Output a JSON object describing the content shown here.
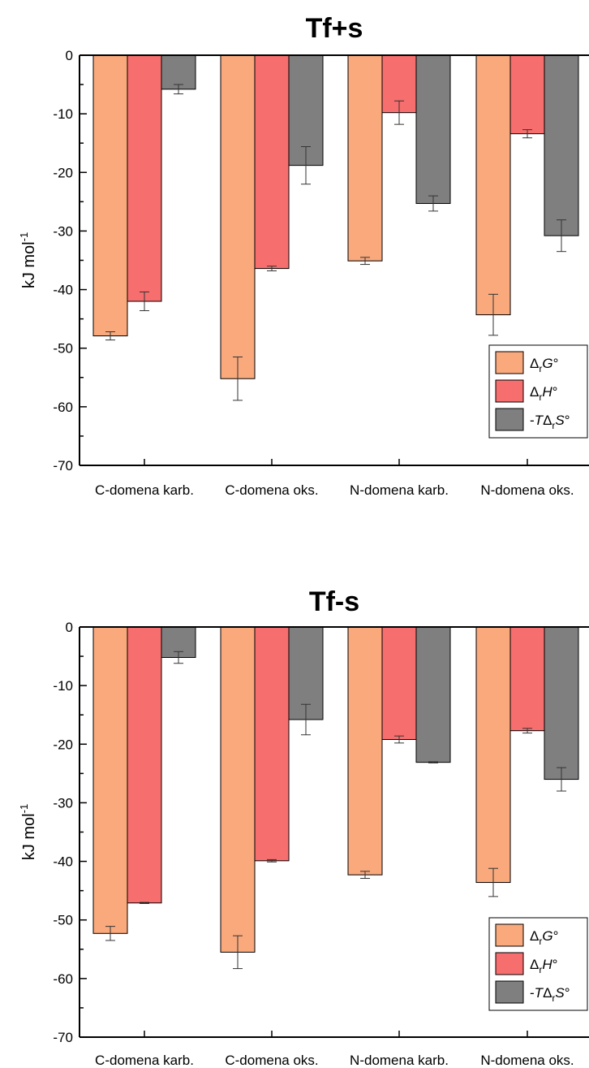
{
  "chart_data": [
    {
      "type": "bar",
      "title": "Tf+s",
      "ylabel": "kJ mol",
      "ylabel_superscript": "-1",
      "ylim": [
        -70,
        0
      ],
      "yticks": [
        "0",
        "-10",
        "-20",
        "-30",
        "-40",
        "-50",
        "-60",
        "-70"
      ],
      "categories": [
        "C-domena karb.",
        "C-domena oks.",
        "N-domena karb.",
        "N-domena oks."
      ],
      "legend_position": "bottom-right",
      "series": [
        {
          "name": "ΔrG°",
          "color": "#f9a97c",
          "values": [
            -47.9,
            -55.2,
            -35.1,
            -44.3
          ],
          "errors": [
            0.7,
            3.7,
            0.6,
            3.5
          ]
        },
        {
          "name": "ΔrH°",
          "color": "#f76e6e",
          "values": [
            -42.0,
            -36.4,
            -9.8,
            -13.4
          ],
          "errors": [
            1.6,
            0.4,
            2.0,
            0.7
          ]
        },
        {
          "name": "-TΔrS°",
          "color": "#7f7f7f",
          "values": [
            -5.8,
            -18.8,
            -25.3,
            -30.8
          ],
          "errors": [
            0.8,
            3.2,
            1.3,
            2.7
          ]
        }
      ]
    },
    {
      "type": "bar",
      "title": "Tf-s",
      "ylabel": "kJ mol",
      "ylabel_superscript": "-1",
      "ylim": [
        -70,
        0
      ],
      "yticks": [
        "0",
        "-10",
        "-20",
        "-30",
        "-40",
        "-50",
        "-60",
        "-70"
      ],
      "categories": [
        "C-domena karb.",
        "C-domena oks.",
        "N-domena karb.",
        "N-domena oks."
      ],
      "legend_position": "bottom-right",
      "series": [
        {
          "name": "ΔrG°",
          "color": "#f9a97c",
          "values": [
            -52.3,
            -55.5,
            -42.3,
            -43.6
          ],
          "errors": [
            1.2,
            2.8,
            0.6,
            2.4
          ]
        },
        {
          "name": "ΔrH°",
          "color": "#f76e6e",
          "values": [
            -47.1,
            -39.9,
            -19.2,
            -17.7
          ],
          "errors": [
            0.1,
            0.2,
            0.6,
            0.4
          ]
        },
        {
          "name": "-TΔrS°",
          "color": "#7f7f7f",
          "values": [
            -5.2,
            -15.8,
            -23.1,
            -26.0
          ],
          "errors": [
            1.0,
            2.6,
            0.1,
            2.0
          ]
        }
      ]
    }
  ]
}
